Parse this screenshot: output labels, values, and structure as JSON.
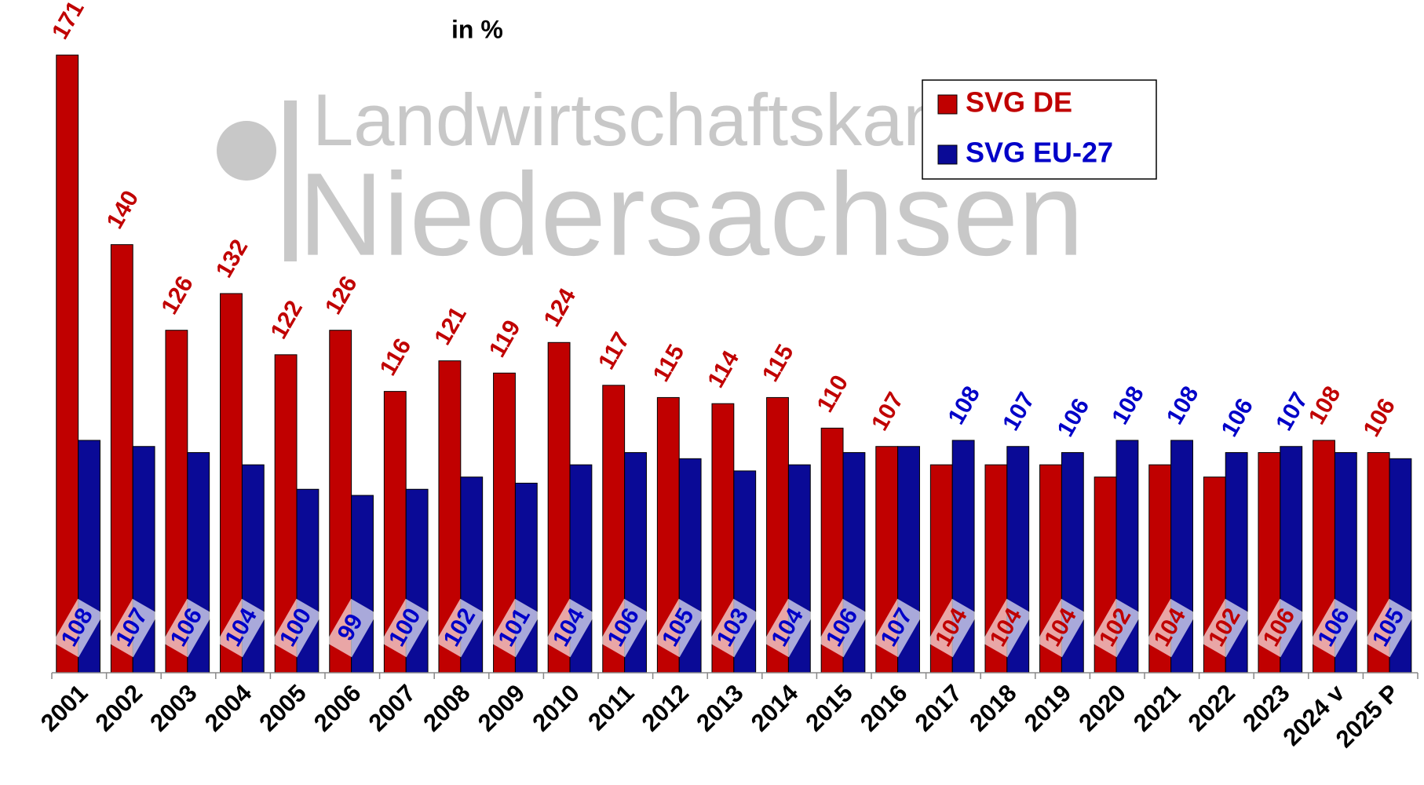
{
  "chart_data": {
    "type": "bar",
    "title": "in %",
    "watermark": [
      "Landwirtschaftskammer",
      "Niedersachsen"
    ],
    "categories": [
      "2001",
      "2002",
      "2003",
      "2004",
      "2005",
      "2006",
      "2007",
      "2008",
      "2009",
      "2010",
      "2011",
      "2012",
      "2013",
      "2014",
      "2015",
      "2016",
      "2017",
      "2018",
      "2019",
      "2020",
      "2021",
      "2022",
      "2023",
      "2024 v",
      "2025 P"
    ],
    "series": [
      {
        "name": "SVG DE",
        "color": "#c00000",
        "values": [
          171,
          140,
          126,
          132,
          122,
          126,
          116,
          121,
          119,
          124,
          117,
          115,
          114,
          115,
          110,
          107,
          104,
          104,
          104,
          102,
          104,
          102,
          106,
          108,
          106
        ]
      },
      {
        "name": "SVG EU-27",
        "color": "#0a0a96",
        "values": [
          108,
          107,
          106,
          104,
          100,
          99,
          100,
          102,
          101,
          104,
          106,
          105,
          103,
          104,
          106,
          107,
          108,
          107,
          106,
          108,
          108,
          106,
          107,
          106,
          105
        ]
      }
    ],
    "ylim": [
      70,
      180
    ],
    "legend": "top"
  }
}
